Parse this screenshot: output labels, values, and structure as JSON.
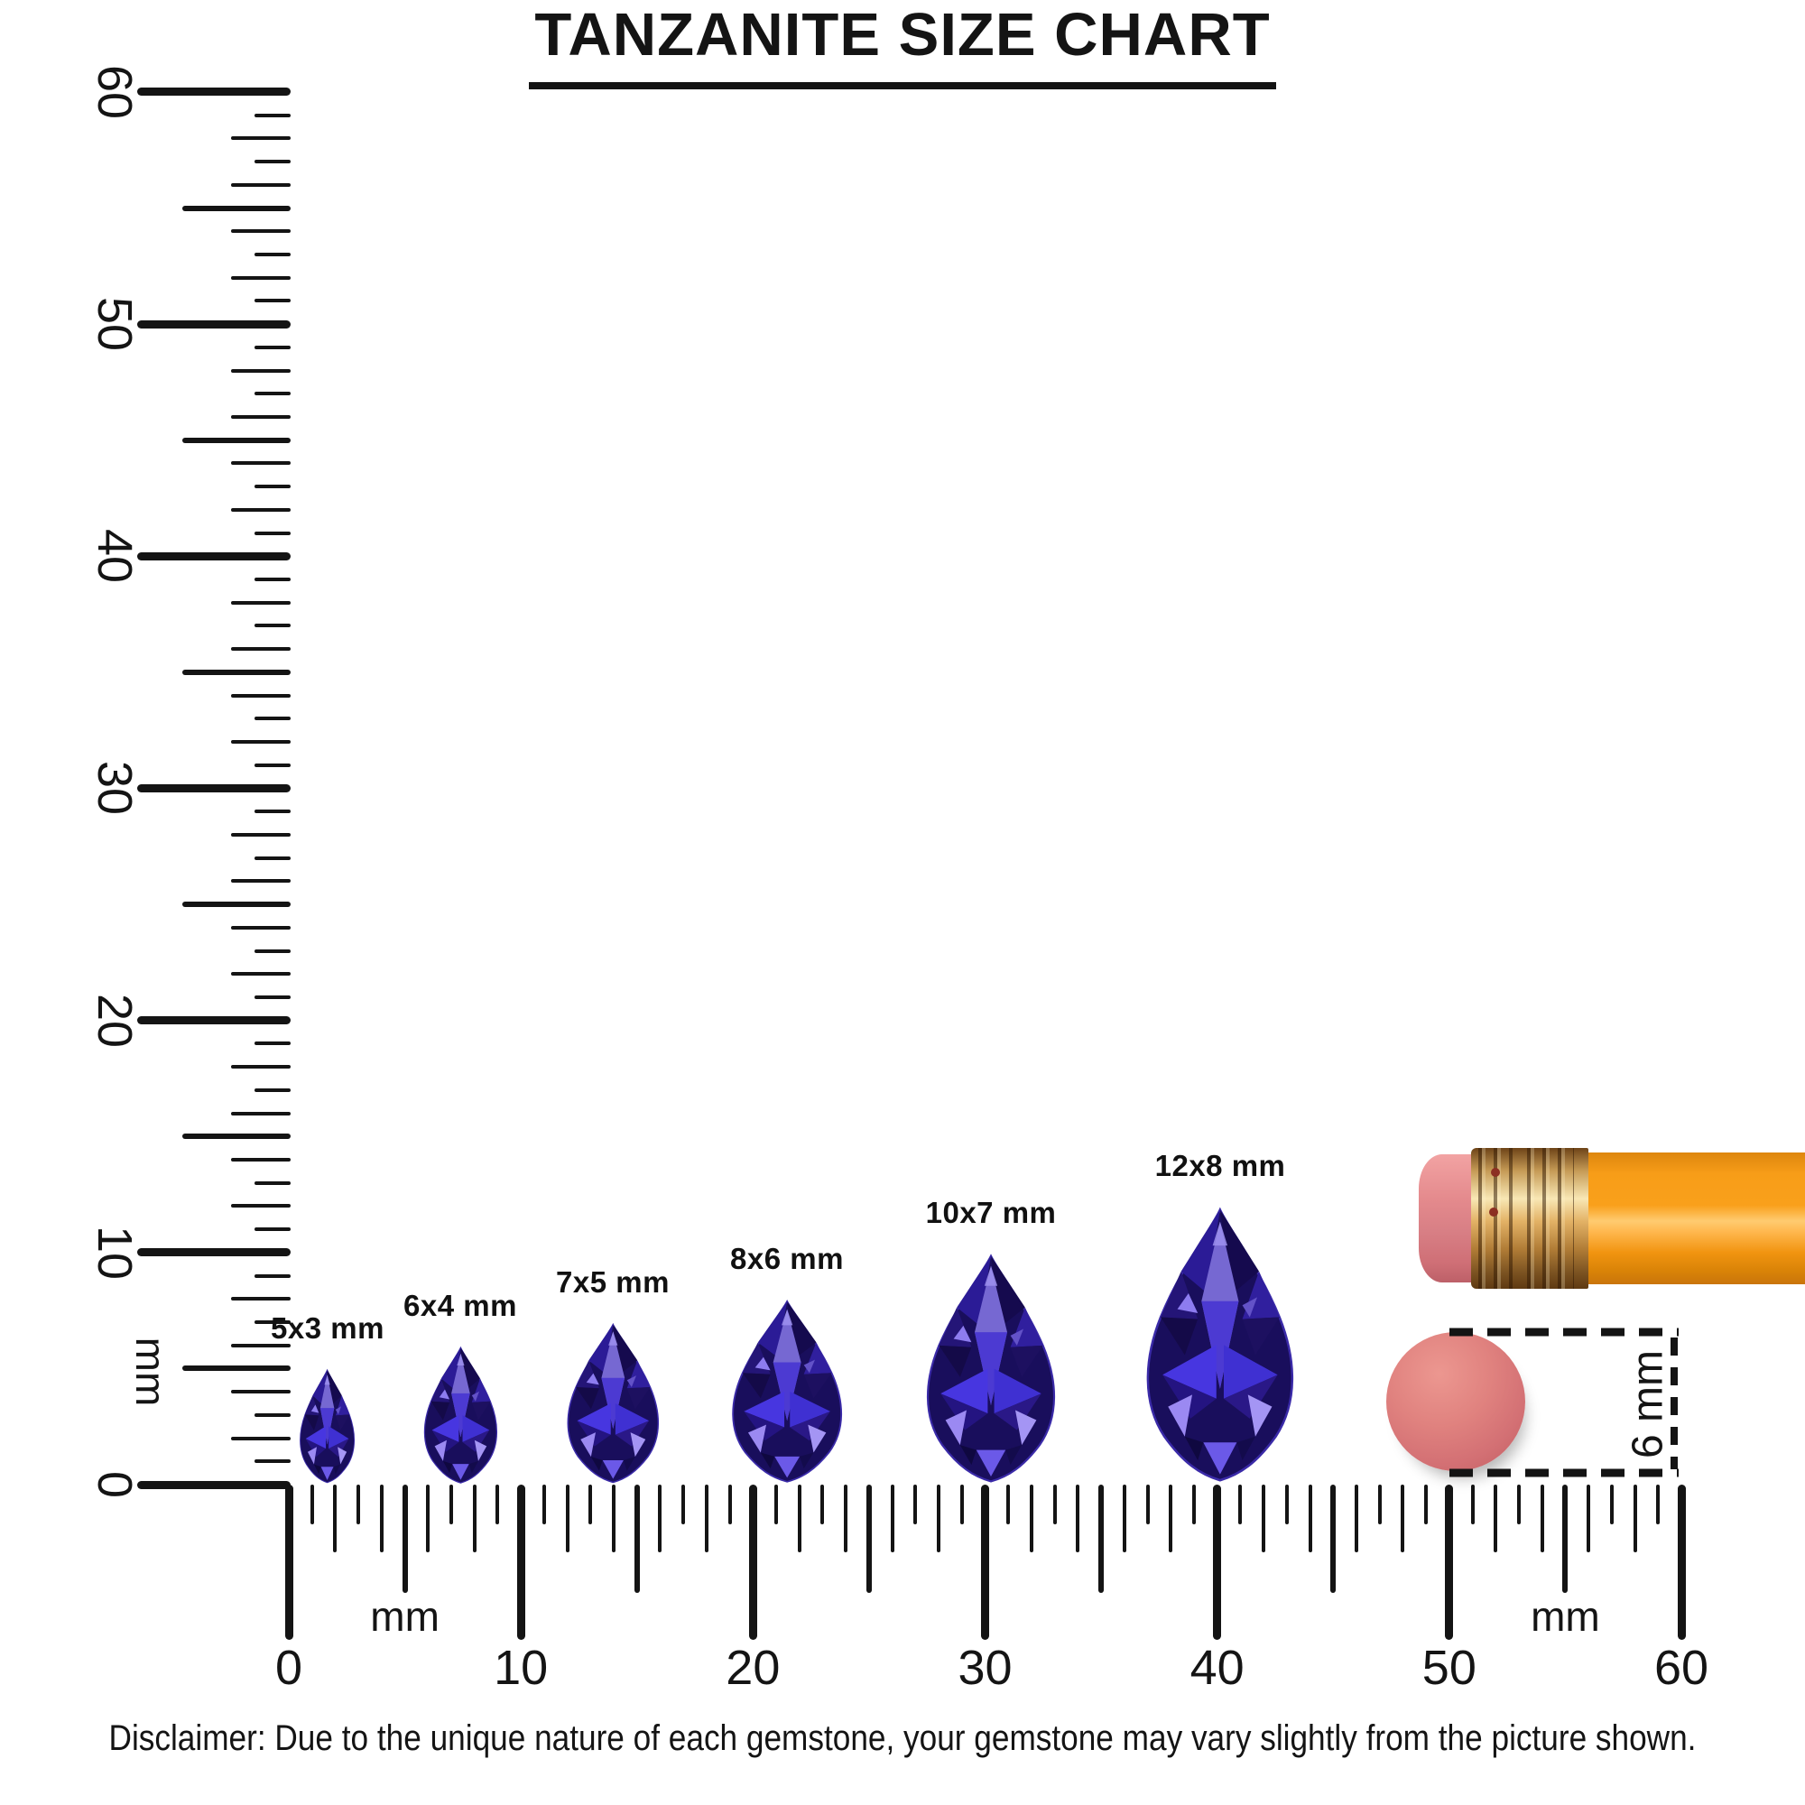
{
  "title": "TANZANITE SIZE CHART",
  "gems": [
    {
      "label": "5x3 mm",
      "length_mm": 5,
      "width_mm": 3
    },
    {
      "label": "6x4 mm",
      "length_mm": 6,
      "width_mm": 4
    },
    {
      "label": "7x5 mm",
      "length_mm": 7,
      "width_mm": 5
    },
    {
      "label": "8x6 mm",
      "length_mm": 8,
      "width_mm": 6
    },
    {
      "label": "10x7 mm",
      "length_mm": 10,
      "width_mm": 7
    },
    {
      "label": "12x8 mm",
      "length_mm": 12,
      "width_mm": 8
    }
  ],
  "rulers": {
    "vertical": {
      "unit_label": "mm",
      "min_mm": 0,
      "max_mm": 60,
      "major_step_mm": 10,
      "tick_labels": [
        "0",
        "10",
        "20",
        "30",
        "40",
        "50",
        "60"
      ]
    },
    "horizontal": {
      "unit_label": "mm",
      "min_mm": 0,
      "max_mm": 60,
      "major_step_mm": 10,
      "tick_labels": [
        "0",
        "10",
        "20",
        "30",
        "40",
        "50",
        "60"
      ],
      "unit_label_positions_mm": [
        5,
        55
      ]
    }
  },
  "eraser_measure": {
    "label": "6 mm",
    "diameter_mm": 6
  },
  "disclaimer": "Disclaimer: Due to the unique nature of each gemstone, your gemstone may vary slightly from the picture shown.",
  "colors": {
    "ink": "#141414",
    "gem_base": "#190e5c",
    "gem_bright": "#4736e0",
    "gem_highlight": "#9b89f2",
    "pencil_body_orange": "#f79d18",
    "pencil_ferrule_gold": "#e3b266",
    "pencil_eraser_pink": "#d87f85",
    "round_eraser_pink": "#d97478"
  }
}
